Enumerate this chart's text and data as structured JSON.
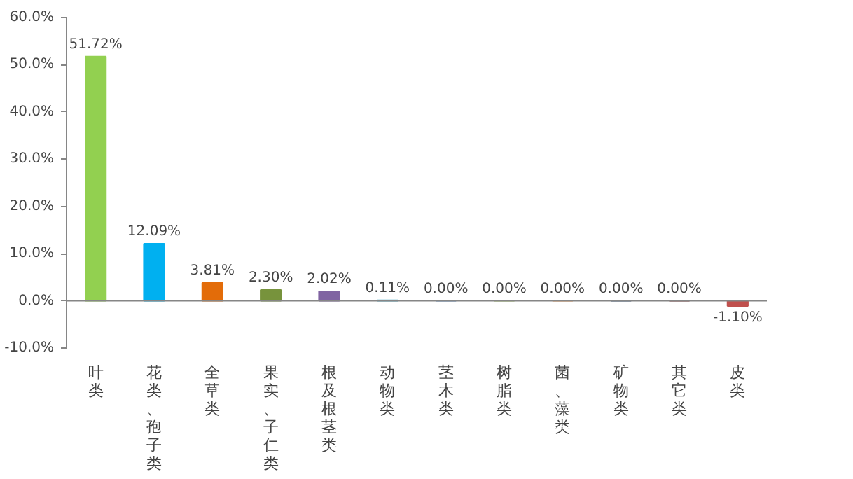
{
  "chart_data": {
    "type": "bar",
    "categories": [
      "叶类",
      "花类、孢子类",
      "全草类",
      "果实、子仁类",
      "根及根茎类",
      "动物类",
      "茎木类",
      "树脂类",
      "菌、藻类",
      "矿物类",
      "其它类",
      "皮类"
    ],
    "values": [
      51.72,
      12.09,
      3.81,
      2.3,
      2.02,
      0.11,
      0.0,
      0.0,
      0.0,
      0.0,
      0.0,
      -1.1
    ],
    "colors": [
      "#92d050",
      "#00b0f0",
      "#e36c09",
      "#77933c",
      "#8064a2",
      "#4bacc6",
      "#4f81bd",
      "#9bbb59",
      "#f79646",
      "#2c4d75",
      "#772c2a",
      "#c0504d"
    ],
    "value_labels": [
      "51.72%",
      "12.09%",
      "3.81%",
      "2.30%",
      "2.02%",
      "0.11%",
      "0.00%",
      "0.00%",
      "0.00%",
      "0.00%",
      "0.00%",
      "-1.10%"
    ],
    "ylim": [
      -10,
      60
    ],
    "yticks": [
      {
        "value": -10,
        "label": "-10.0%"
      },
      {
        "value": 0,
        "label": "0.0%"
      },
      {
        "value": 10,
        "label": "10.0%"
      },
      {
        "value": 20,
        "label": "20.0%"
      },
      {
        "value": 30,
        "label": "30.0%"
      },
      {
        "value": 40,
        "label": "40.0%"
      },
      {
        "value": 50,
        "label": "50.0%"
      },
      {
        "value": 60,
        "label": "60.0%"
      }
    ]
  }
}
